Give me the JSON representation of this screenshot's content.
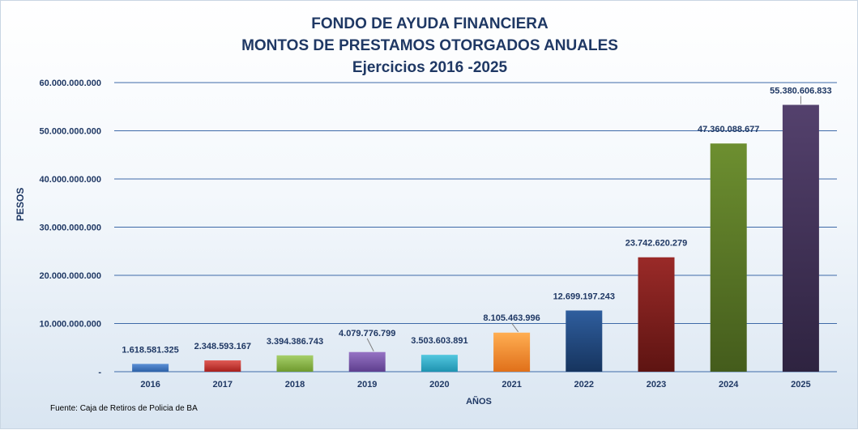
{
  "chart_data": {
    "type": "bar",
    "title_lines": [
      "FONDO DE AYUDA FINANCIERA",
      "MONTOS  DE  PRESTAMOS  OTORGADOS  ANUALES",
      "Ejercicios  2016 -2025"
    ],
    "xlabel": "AÑOS",
    "ylabel": "PESOS",
    "source": "Fuente: Caja de Retiros de Policia de BA",
    "ylim": [
      0,
      60000000000
    ],
    "yticks": [
      {
        "value": 0,
        "label": "-"
      },
      {
        "value": 10000000000,
        "label": "10.000.000.000"
      },
      {
        "value": 20000000000,
        "label": "20.000.000.000"
      },
      {
        "value": 30000000000,
        "label": "30.000.000.000"
      },
      {
        "value": 40000000000,
        "label": "40.000.000.000"
      },
      {
        "value": 50000000000,
        "label": "50.000.000.000"
      },
      {
        "value": 60000000000,
        "label": "60.000.000.000"
      }
    ],
    "grid": true,
    "categories": [
      "2016",
      "2017",
      "2018",
      "2019",
      "2020",
      "2021",
      "2022",
      "2023",
      "2024",
      "2025"
    ],
    "values": [
      1618581325,
      2348593167,
      3394386743,
      4079776799,
      3503603891,
      8105463996,
      12699197243,
      23742620279,
      47360088677,
      55380606833
    ],
    "value_labels": [
      "1.618.581.325",
      "2.348.593.167",
      "3.394.386.743",
      "4.079.776.799",
      "3.503.603.891",
      "8.105.463.996",
      "12.699.197.243",
      "23.742.620.279",
      "47.360.088.677",
      "55.380.606.833"
    ],
    "bar_colors": [
      [
        "#5b8fd6",
        "#2e62a8"
      ],
      [
        "#e05a55",
        "#a8211d"
      ],
      [
        "#a6cf6a",
        "#6f9a2e"
      ],
      [
        "#9673c4",
        "#5e3f8e"
      ],
      [
        "#52c7df",
        "#1f93b0"
      ],
      [
        "#ffae52",
        "#e0701a"
      ],
      [
        "#2f5e9e",
        "#16345e"
      ],
      [
        "#9a2a28",
        "#5e1412"
      ],
      [
        "#6d8f30",
        "#445c1c"
      ],
      [
        "#54416d",
        "#2e2340"
      ]
    ],
    "gridline_color": "#3e6aa8"
  }
}
